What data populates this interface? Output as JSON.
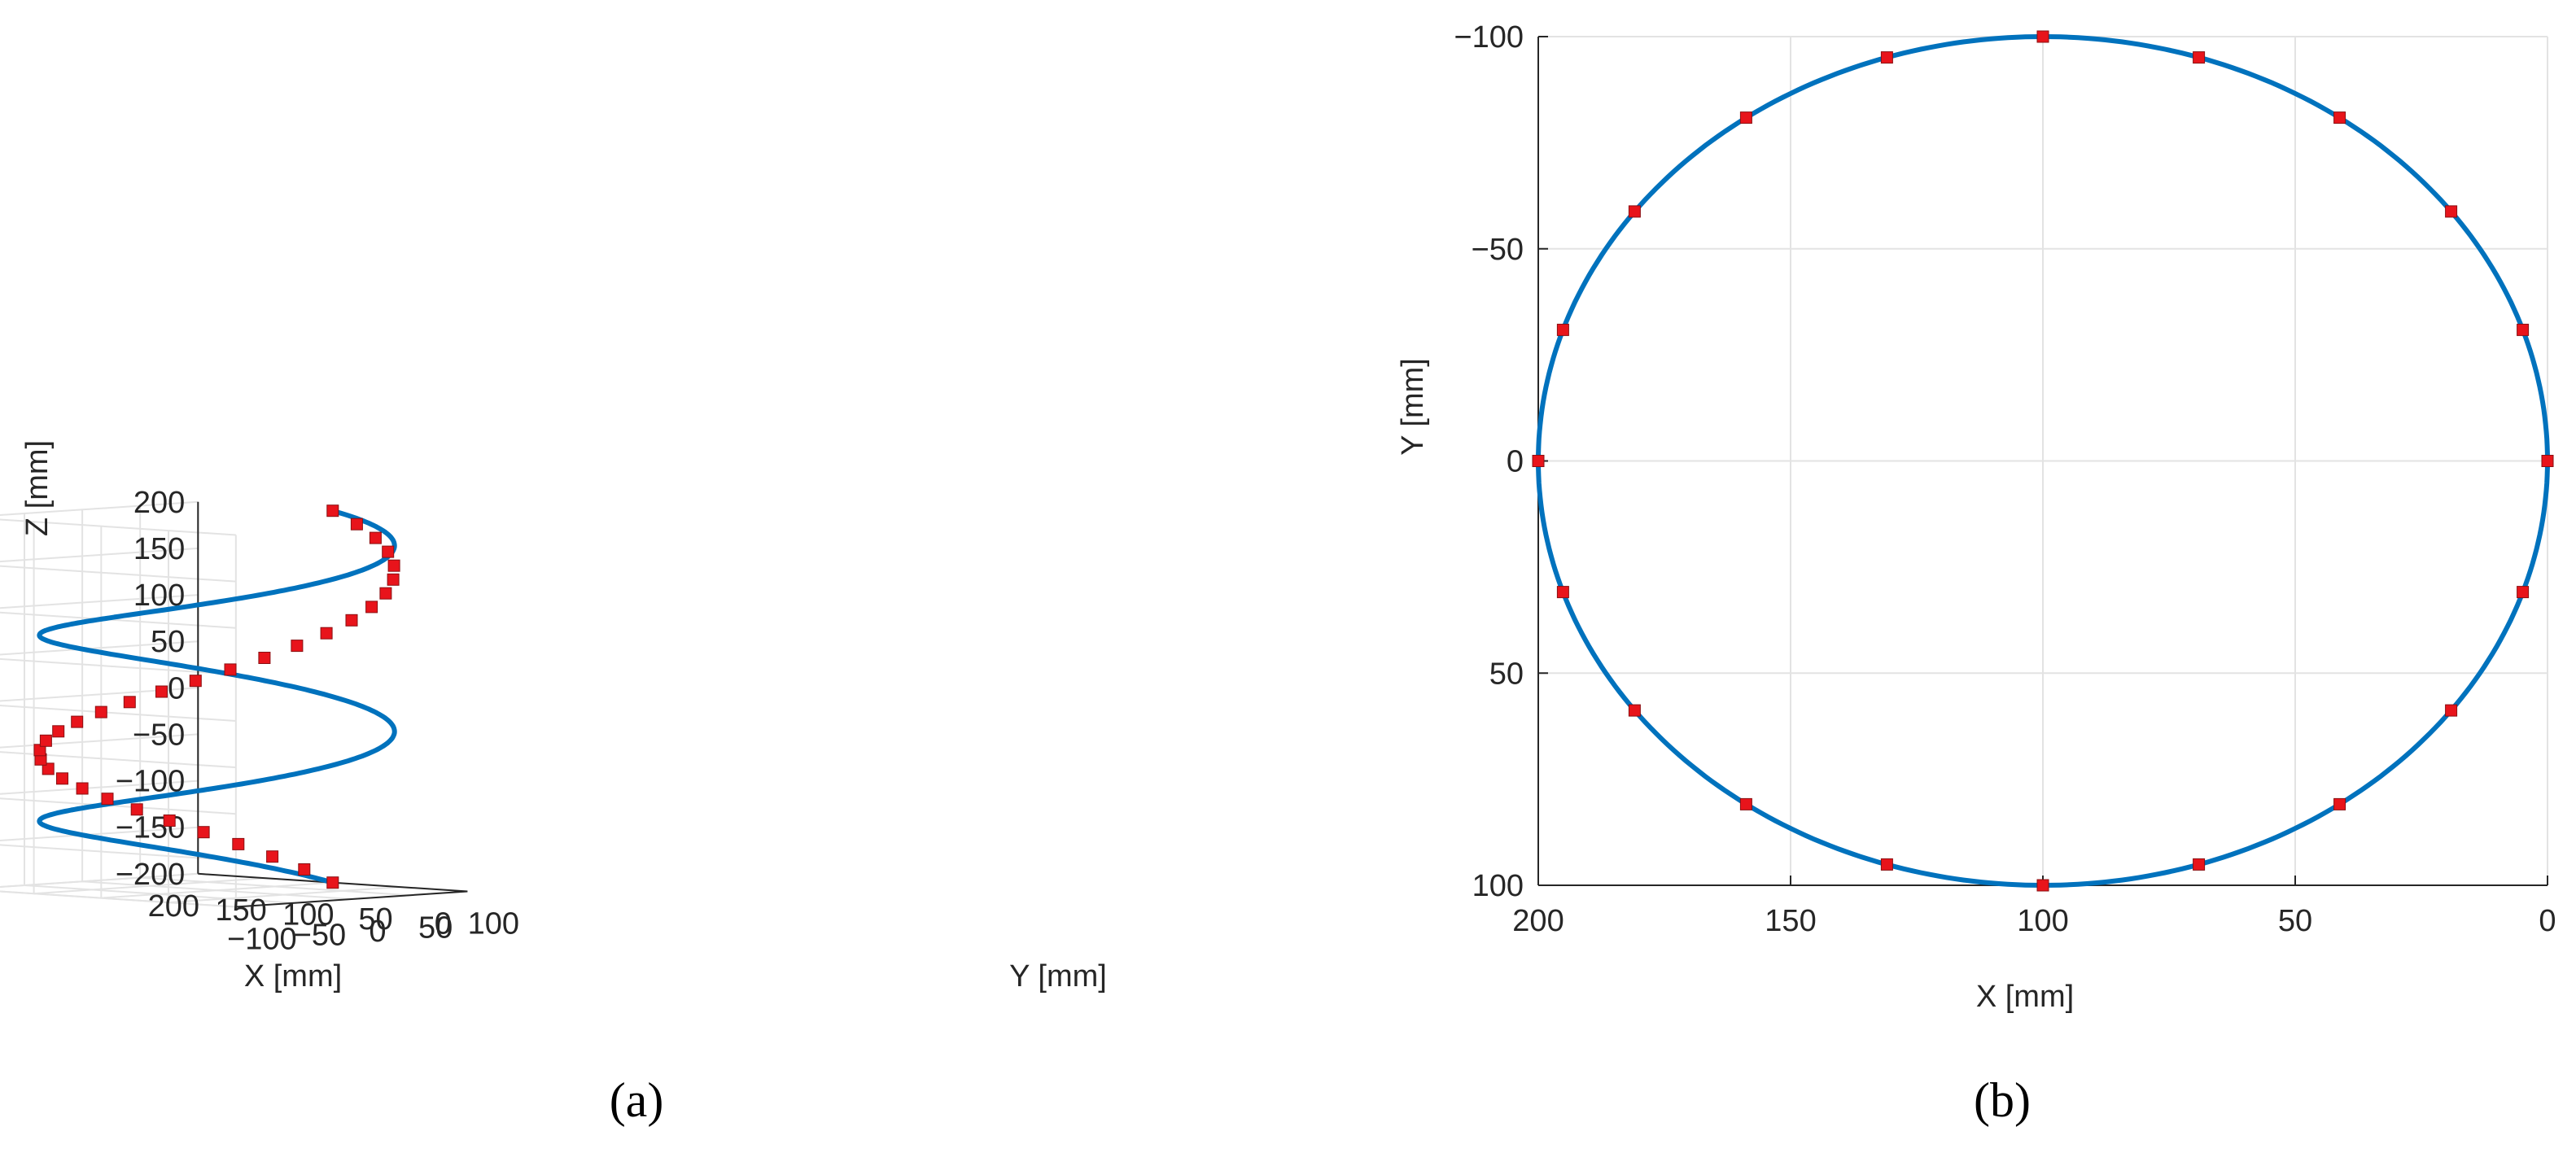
{
  "chart_data": [
    {
      "type": "line3d",
      "caption": "(a)",
      "xlabel": "X [mm]",
      "ylabel": "Y [mm]",
      "zlabel": "Z [mm]",
      "xlim": [
        0,
        200
      ],
      "ylim": [
        -100,
        100
      ],
      "zlim": [
        -200,
        200
      ],
      "grid": true,
      "x_ticks": [
        "200",
        "150",
        "100",
        "50",
        "0"
      ],
      "y_ticks": [
        "100",
        "50",
        "0",
        "−50",
        "−100"
      ],
      "z_ticks": [
        "200",
        "150",
        "100",
        "50",
        "0",
        "−50",
        "−100",
        "−150",
        "−200"
      ],
      "series": [
        {
          "marker": "square",
          "line_color": "#0072BD",
          "marker_color": "#E8141B",
          "x": [
            100,
            119.5,
            138.3,
            155.6,
            170.7,
            183.1,
            192.4,
            198.1,
            200,
            198.1,
            192.4,
            183.1,
            170.7,
            155.6,
            138.3,
            119.5,
            100,
            80.5,
            61.7,
            44.4,
            29.3,
            16.9,
            7.6,
            1.9,
            0,
            1.9,
            7.6,
            16.9,
            29.3,
            44.4,
            61.7,
            80.5,
            100
          ],
          "y": [
            100,
            98.1,
            92.4,
            83.1,
            70.7,
            55.6,
            38.3,
            19.5,
            0,
            -19.5,
            -38.3,
            -55.6,
            -70.7,
            -83.1,
            -92.4,
            -98.1,
            -100,
            -98.1,
            -92.4,
            -83.1,
            -70.7,
            -55.6,
            -38.3,
            -19.5,
            0,
            19.5,
            38.3,
            55.6,
            70.7,
            83.1,
            92.4,
            98.1,
            100
          ],
          "z": [
            -200,
            -187.5,
            -175,
            -162.5,
            -150,
            -137.5,
            -125,
            -112.5,
            -100,
            -87.5,
            -75,
            -62.5,
            -50,
            -37.5,
            -25,
            -12.5,
            0,
            12.5,
            25,
            37.5,
            50,
            62.5,
            75,
            87.5,
            100,
            112.5,
            125,
            137.5,
            150,
            162.5,
            175,
            187.5,
            200
          ]
        }
      ]
    },
    {
      "type": "line",
      "caption": "(b)",
      "xlabel": "X [mm]",
      "ylabel": "Y [mm]",
      "xlim": [
        0,
        200
      ],
      "ylim": [
        -100,
        100
      ],
      "x_reversed": true,
      "y_reversed": true,
      "grid": true,
      "x_ticks": [
        "200",
        "150",
        "100",
        "50",
        "0"
      ],
      "y_ticks": [
        "−100",
        "−50",
        "0",
        "50",
        "100"
      ],
      "series": [
        {
          "marker": "square",
          "line_color": "#0072BD",
          "marker_color": "#E8141B",
          "x": [
            0,
            4.9,
            19.1,
            41.2,
            69.1,
            100,
            130.9,
            158.8,
            180.9,
            195.1,
            200,
            195.1,
            180.9,
            158.8,
            130.9,
            100,
            69.1,
            41.2,
            19.1,
            4.9,
            0
          ],
          "y": [
            0,
            30.9,
            58.8,
            80.9,
            95.1,
            100,
            95.1,
            80.9,
            58.8,
            30.9,
            0,
            -30.9,
            -58.8,
            -80.9,
            -95.1,
            -100,
            -95.1,
            -80.9,
            -58.8,
            -30.9,
            0
          ]
        }
      ]
    }
  ]
}
